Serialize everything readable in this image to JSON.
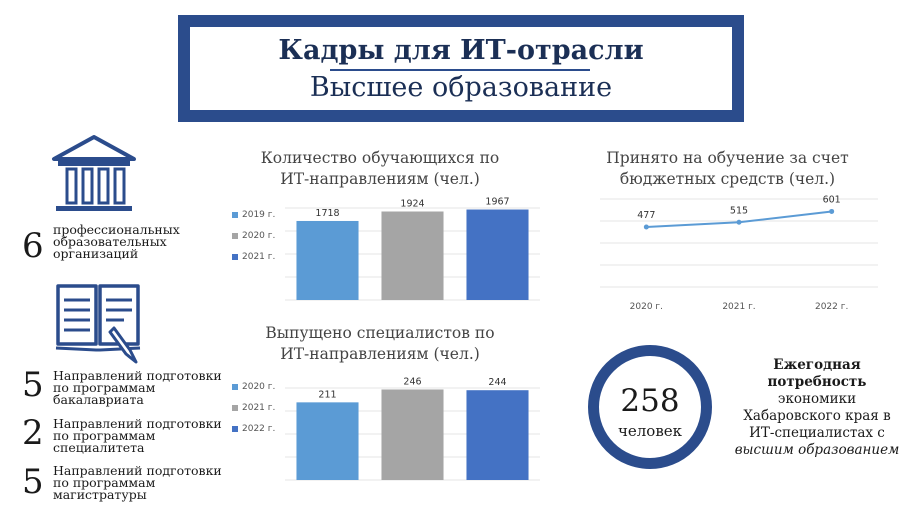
{
  "header": {
    "title": "Кадры для ИТ-отрасли",
    "subtitle": "Высшее образование"
  },
  "stats": [
    {
      "value": "6",
      "text": "профессиональных образовательных организаций"
    },
    {
      "value": "5",
      "text": "Направлений подготовки по программам бакалавриата"
    },
    {
      "value": "2",
      "text": "Направлений подготовки по программам специалитета"
    },
    {
      "value": "5",
      "text": "Направлений подготовки по программам магистратуры"
    }
  ],
  "colors": {
    "accent": "#2b4c8c",
    "light_blue": "#5b9bd5",
    "gray": "#a5a5a5",
    "blue": "#4472c4"
  },
  "icons": [
    "institution-icon",
    "open-book-icon"
  ],
  "chart_data": [
    {
      "type": "bar",
      "title": "Количество обучающихся по ИТ-направлениям (чел.)",
      "categories": [
        "2019 г.",
        "2020 г.",
        "2021 г."
      ],
      "values": [
        1718,
        1924,
        1967
      ],
      "value_labels": [
        "1718",
        "1924",
        "1967"
      ],
      "legend": [
        "2019 г.",
        "2020 г.",
        "2021 г."
      ],
      "legend_position": "left",
      "grid": true,
      "ylim": [
        0,
        2000
      ]
    },
    {
      "type": "bar",
      "title": "Выпущено специалистов по ИТ-направлениям (чел.)",
      "categories": [
        "2020 г.",
        "2021 г.",
        "2022 г."
      ],
      "values": [
        211,
        246,
        244
      ],
      "value_labels": [
        "211",
        "246",
        "244"
      ],
      "legend": [
        "2020 г.",
        "2021 г.",
        "2022 г."
      ],
      "legend_position": "left",
      "grid": true,
      "ylim": [
        0,
        250
      ]
    },
    {
      "type": "line",
      "title": "Принято на обучение за счет бюджетных средств (чел.)",
      "x": [
        "2020 г.",
        "2021 г.",
        "2022 г."
      ],
      "values": [
        477,
        515,
        601
      ],
      "value_labels": [
        "477",
        "515",
        "601"
      ],
      "grid": true,
      "ylim": [
        0,
        700
      ]
    }
  ],
  "need": {
    "value": "258",
    "unit": "человек",
    "line1": "Ежегодная",
    "line2": "потребность",
    "line3": "экономики",
    "line4": "Хабаровского края в",
    "line5": "ИТ-специалистах с",
    "line6": "высшим образованием"
  }
}
